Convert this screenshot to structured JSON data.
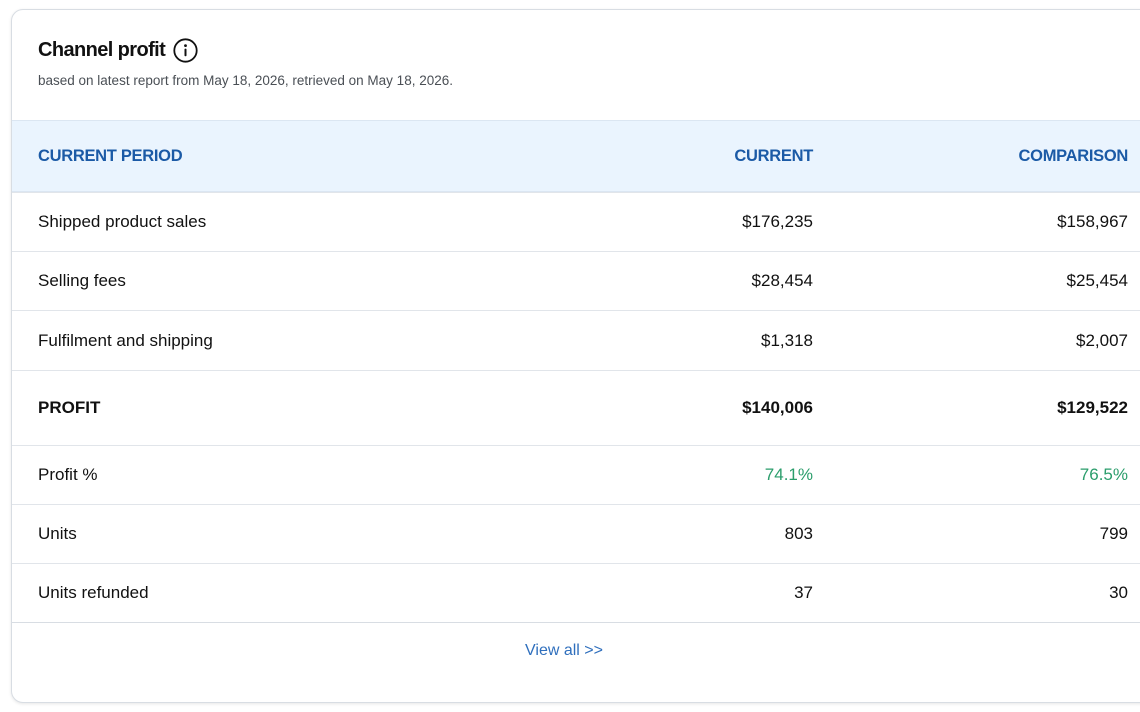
{
  "widget": {
    "title": "Channel profit",
    "subtitle": "based on latest report from May 18, 2026, retrieved on May 18, 2026.",
    "info_icon": "info-circle-icon"
  },
  "table": {
    "headers": {
      "period": "CURRENT PERIOD",
      "current": "CURRENT",
      "comparison": "COMPARISON"
    },
    "rows": [
      {
        "label": "Shipped product sales",
        "current": "$176,235",
        "comparison": "$158,967"
      },
      {
        "label": "Selling fees",
        "current": "$28,454",
        "comparison": "$25,454"
      },
      {
        "label": "Fulfilment and shipping",
        "current": "$1,318",
        "comparison": "$2,007"
      },
      {
        "label": "PROFIT",
        "current": "$140,006",
        "comparison": "$129,522"
      },
      {
        "label": "Profit %",
        "current": "74.1%",
        "comparison": "76.5%"
      },
      {
        "label": "Units",
        "current": "803",
        "comparison": "799"
      },
      {
        "label": "Units refunded",
        "current": "37",
        "comparison": "30"
      }
    ]
  },
  "footer": {
    "view_all": "View all >>"
  },
  "colors": {
    "header_bg": "#eaf4fe",
    "header_text": "#1b5aa6",
    "positive": "#2a9d6b",
    "link": "#2f6fbd"
  }
}
